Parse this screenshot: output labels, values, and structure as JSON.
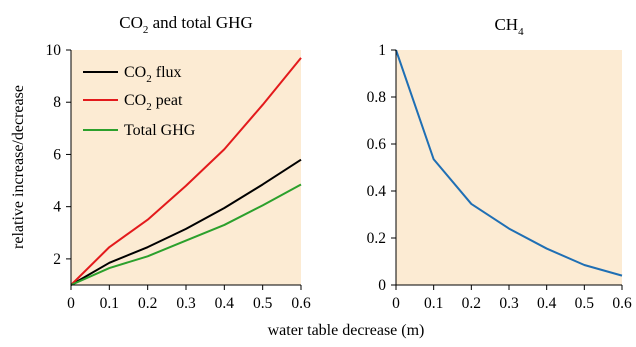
{
  "chart_data": [
    {
      "type": "line",
      "title": "CO2 and total GHG",
      "title_base": "CO",
      "title_sub": "2",
      "title_rest": " and total GHG",
      "xlabel": "water table decrease (m)",
      "ylabel": "relative increase/decrease",
      "xlim": [
        0,
        0.6
      ],
      "ylim": [
        1,
        10
      ],
      "xticks": [
        "0",
        "0.1",
        "0.2",
        "0.3",
        "0.4",
        "0.5",
        "0.6"
      ],
      "yticks": [
        "2",
        "4",
        "6",
        "8",
        "10"
      ],
      "x": [
        0,
        0.1,
        0.2,
        0.3,
        0.4,
        0.5,
        0.6
      ],
      "background": "#fcebd3",
      "legend_position": "top-left",
      "series": [
        {
          "name": "CO2 flux",
          "label_base": "CO",
          "label_sub": "2",
          "label_rest": " flux",
          "color": "#000000",
          "values": [
            1.0,
            1.85,
            2.45,
            3.15,
            3.95,
            4.85,
            5.8
          ]
        },
        {
          "name": "CO2 peat",
          "label_base": "CO",
          "label_sub": "2",
          "label_rest": " peat",
          "color": "#e31a1c",
          "values": [
            1.0,
            2.45,
            3.5,
            4.8,
            6.2,
            7.9,
            9.7
          ]
        },
        {
          "name": "Total GHG",
          "label_base": "Total GHG",
          "label_sub": "",
          "label_rest": "",
          "color": "#2ca02c",
          "values": [
            1.0,
            1.65,
            2.1,
            2.7,
            3.3,
            4.05,
            4.85
          ]
        }
      ]
    },
    {
      "type": "line",
      "title": "CH4",
      "title_base": "CH",
      "title_sub": "4",
      "title_rest": "",
      "xlim": [
        0,
        0.6
      ],
      "ylim": [
        0,
        1
      ],
      "xticks": [
        "0",
        "0.1",
        "0.2",
        "0.3",
        "0.4",
        "0.5",
        "0.6"
      ],
      "yticks": [
        "0",
        "0.2",
        "0.4",
        "0.6",
        "0.8",
        "1"
      ],
      "x": [
        0,
        0.1,
        0.2,
        0.3,
        0.4,
        0.5,
        0.6
      ],
      "background": "#fcebd3",
      "series": [
        {
          "color": "#1f6fb4",
          "values": [
            1.0,
            0.535,
            0.345,
            0.24,
            0.155,
            0.085,
            0.04
          ]
        }
      ]
    }
  ]
}
